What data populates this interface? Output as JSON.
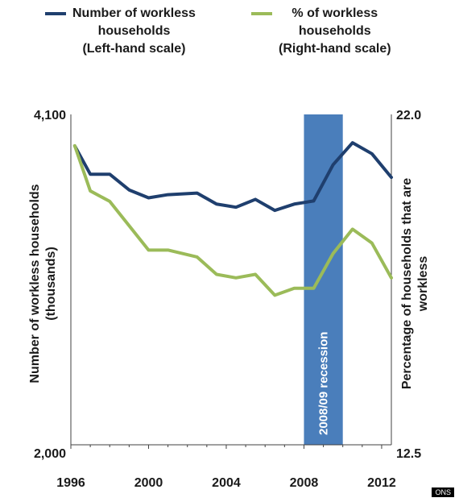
{
  "legend": {
    "left": {
      "lines": [
        "Number of workless",
        "households",
        "(Left-hand scale)"
      ],
      "color": "#1f3f6e"
    },
    "right": {
      "lines": [
        "% of workless",
        "households",
        "(Right-hand scale)"
      ],
      "color": "#9bbb59"
    }
  },
  "badge": "ONS",
  "chart_data": {
    "type": "line",
    "xlabel": "",
    "ylabel_left": [
      "Number of workless households",
      "(thousands)"
    ],
    "ylabel_right": [
      "Percentage of households that are",
      "workless"
    ],
    "y_left": {
      "min": 2000,
      "max": 4100,
      "ticks": [
        "4,100",
        "2,000"
      ]
    },
    "y_right": {
      "min": 12.5,
      "max": 22.0,
      "ticks": [
        "22.0",
        "12.5"
      ]
    },
    "x_ticks": [
      "1996",
      "2000",
      "2004",
      "2008",
      "2012"
    ],
    "xlim": [
      1996,
      2012.5
    ],
    "recession": {
      "label": "2008/09 recession",
      "start": 2008,
      "end": 2010,
      "color": "#4a7ebb"
    },
    "series": [
      {
        "name": "Number of workless households",
        "axis": "left",
        "color": "#1f3f6e",
        "x": [
          1996.2,
          1997,
          1998,
          1999,
          2000,
          2001,
          2002.5,
          2003.5,
          2004.5,
          2005.5,
          2006.5,
          2007.5,
          2008.5,
          2009.5,
          2010.5,
          2011.5,
          2012.5
        ],
        "values": [
          3900,
          3720,
          3720,
          3620,
          3570,
          3590,
          3600,
          3530,
          3510,
          3560,
          3490,
          3530,
          3550,
          3780,
          3920,
          3850,
          3700
        ]
      },
      {
        "name": "% of workless households",
        "axis": "right",
        "color": "#9bbb59",
        "x": [
          1996.2,
          1997,
          1998,
          1999,
          2000,
          2001,
          2002.5,
          2003.5,
          2004.5,
          2005.5,
          2006.5,
          2007.5,
          2008.5,
          2009.5,
          2010.5,
          2011.5,
          2012.5
        ],
        "values": [
          21.1,
          19.8,
          19.5,
          18.8,
          18.1,
          18.1,
          17.9,
          17.4,
          17.3,
          17.4,
          16.8,
          17.0,
          17.0,
          18.0,
          18.7,
          18.3,
          17.3
        ]
      }
    ]
  }
}
